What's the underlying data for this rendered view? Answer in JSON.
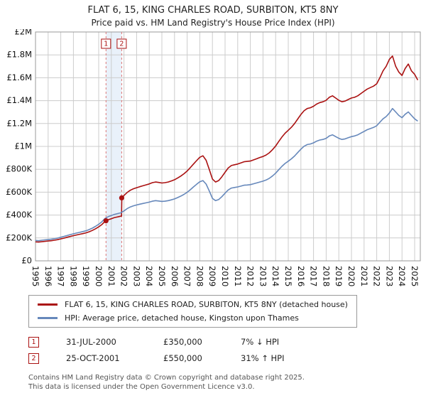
{
  "header": {
    "title": "FLAT 6, 15, KING CHARLES ROAD, SURBITON, KT5 8NY",
    "subtitle": "Price paid vs. HM Land Registry's House Price Index (HPI)"
  },
  "chart_data": {
    "type": "line",
    "xlim": [
      1995,
      2025.45
    ],
    "ylim": [
      0,
      2000000
    ],
    "grid": true,
    "legend_position": "bottom",
    "xticks": [
      1995,
      1996,
      1997,
      1998,
      1999,
      2000,
      2001,
      2002,
      2003,
      2004,
      2005,
      2006,
      2007,
      2008,
      2009,
      2010,
      2011,
      2012,
      2013,
      2014,
      2015,
      2016,
      2017,
      2018,
      2019,
      2020,
      2021,
      2022,
      2023,
      2024,
      2025
    ],
    "yticks": [
      {
        "value": 0,
        "label": "£0"
      },
      {
        "value": 200000,
        "label": "£200K"
      },
      {
        "value": 400000,
        "label": "£400K"
      },
      {
        "value": 600000,
        "label": "£600K"
      },
      {
        "value": 800000,
        "label": "£800K"
      },
      {
        "value": 1000000,
        "label": "£1M"
      },
      {
        "value": 1200000,
        "label": "£1.2M"
      },
      {
        "value": 1400000,
        "label": "£1.4M"
      },
      {
        "value": 1600000,
        "label": "£1.6M"
      },
      {
        "value": 1800000,
        "label": "£1.8M"
      },
      {
        "value": 2000000,
        "label": "£2M"
      }
    ],
    "highlight_band": {
      "x1": 2000.58,
      "x2": 2001.82,
      "color": "#cfdff5",
      "opacity": 0.45
    },
    "marker_line_color": "#dd7777",
    "markers": [
      {
        "label": "1",
        "x": 2000.58,
        "y": 350000
      },
      {
        "label": "2",
        "x": 2001.82,
        "y": 550000
      }
    ],
    "series": [
      {
        "name": "FLAT 6, 15, KING CHARLES ROAD, SURBITON, KT5 8NY (detached house)",
        "color": "#aa1111",
        "x": [
          1995,
          1995.25,
          1995.5,
          1995.75,
          1996,
          1996.25,
          1996.5,
          1996.75,
          1997,
          1997.25,
          1997.5,
          1997.75,
          1998,
          1998.25,
          1998.5,
          1998.75,
          1999,
          1999.25,
          1999.5,
          1999.75,
          2000,
          2000.25,
          2000.5,
          2000.58,
          2000.75,
          2001,
          2001.25,
          2001.5,
          2001.75,
          2001.81,
          2001.83,
          2002,
          2002.25,
          2002.5,
          2002.75,
          2003,
          2003.25,
          2003.5,
          2003.75,
          2004,
          2004.25,
          2004.5,
          2004.75,
          2005,
          2005.25,
          2005.5,
          2005.75,
          2006,
          2006.25,
          2006.5,
          2006.75,
          2007,
          2007.25,
          2007.5,
          2007.75,
          2008,
          2008.25,
          2008.5,
          2008.75,
          2009,
          2009.25,
          2009.5,
          2009.75,
          2010,
          2010.25,
          2010.5,
          2010.75,
          2011,
          2011.25,
          2011.5,
          2011.75,
          2012,
          2012.25,
          2012.5,
          2012.75,
          2013,
          2013.25,
          2013.5,
          2013.75,
          2014,
          2014.25,
          2014.5,
          2014.75,
          2015,
          2015.25,
          2015.5,
          2015.75,
          2016,
          2016.25,
          2016.5,
          2016.75,
          2017,
          2017.25,
          2017.5,
          2017.75,
          2018,
          2018.25,
          2018.5,
          2018.75,
          2019,
          2019.25,
          2019.5,
          2019.75,
          2020,
          2020.25,
          2020.5,
          2020.75,
          2021,
          2021.25,
          2021.5,
          2021.75,
          2022,
          2022.25,
          2022.5,
          2022.75,
          2023,
          2023.25,
          2023.5,
          2023.75,
          2024,
          2024.25,
          2024.5,
          2024.75,
          2025,
          2025.25
        ],
        "y": [
          166000,
          164000,
          167000,
          170000,
          173000,
          176000,
          180000,
          185000,
          192000,
          198000,
          206000,
          213000,
          220000,
          226000,
          232000,
          238000,
          245000,
          254000,
          266000,
          280000,
          297000,
          317000,
          345000,
          350000,
          359000,
          368000,
          378000,
          384000,
          390000,
          392000,
          550000,
          571000,
          597000,
          617000,
          630000,
          639000,
          648000,
          656000,
          664000,
          672000,
          683000,
          689000,
          685000,
          680000,
          683000,
          689000,
          698000,
          709000,
          724000,
          741000,
          761000,
          785000,
          814000,
          846000,
          876000,
          905000,
          918000,
          879000,
          800000,
          715000,
          689000,
          702000,
          735000,
          774000,
          811000,
          833000,
          840000,
          846000,
          856000,
          866000,
          869000,
          872000,
          882000,
          892000,
          903000,
          912000,
          925000,
          944000,
          971000,
          1003000,
          1043000,
          1082000,
          1115000,
          1141000,
          1167000,
          1200000,
          1239000,
          1279000,
          1311000,
          1331000,
          1338000,
          1351000,
          1370000,
          1383000,
          1390000,
          1403000,
          1429000,
          1442000,
          1423000,
          1403000,
          1390000,
          1396000,
          1410000,
          1423000,
          1429000,
          1442000,
          1462000,
          1482000,
          1501000,
          1514000,
          1527000,
          1547000,
          1600000,
          1660000,
          1700000,
          1760000,
          1790000,
          1700000,
          1650000,
          1620000,
          1680000,
          1720000,
          1660000,
          1630000,
          1580000
        ]
      },
      {
        "name": "HPI: Average price, detached house, Kingston upon Thames",
        "color": "#6688bb",
        "x": [
          1995,
          1995.25,
          1995.5,
          1995.75,
          1996,
          1996.25,
          1996.5,
          1996.75,
          1997,
          1997.25,
          1997.5,
          1997.75,
          1998,
          1998.25,
          1998.5,
          1998.75,
          1999,
          1999.25,
          1999.5,
          1999.75,
          2000,
          2000.25,
          2000.5,
          2000.75,
          2001,
          2001.25,
          2001.5,
          2001.75,
          2002,
          2002.25,
          2002.5,
          2002.75,
          2003,
          2003.25,
          2003.5,
          2003.75,
          2004,
          2004.25,
          2004.5,
          2004.75,
          2005,
          2005.25,
          2005.5,
          2005.75,
          2006,
          2006.25,
          2006.5,
          2006.75,
          2007,
          2007.25,
          2007.5,
          2007.75,
          2008,
          2008.25,
          2008.5,
          2008.75,
          2009,
          2009.25,
          2009.5,
          2009.75,
          2010,
          2010.25,
          2010.5,
          2010.75,
          2011,
          2011.25,
          2011.5,
          2011.75,
          2012,
          2012.25,
          2012.5,
          2012.75,
          2013,
          2013.25,
          2013.5,
          2013.75,
          2014,
          2014.25,
          2014.5,
          2014.75,
          2015,
          2015.25,
          2015.5,
          2015.75,
          2016,
          2016.25,
          2016.5,
          2016.75,
          2017,
          2017.25,
          2017.5,
          2017.75,
          2018,
          2018.25,
          2018.5,
          2018.75,
          2019,
          2019.25,
          2019.5,
          2019.75,
          2020,
          2020.25,
          2020.5,
          2020.75,
          2021,
          2021.25,
          2021.5,
          2021.75,
          2022,
          2022.25,
          2022.5,
          2022.75,
          2023,
          2023.25,
          2023.5,
          2023.75,
          2024,
          2024.25,
          2024.5,
          2024.75,
          2025,
          2025.25
        ],
        "y": [
          178000,
          176000,
          180000,
          183000,
          186000,
          189000,
          193000,
          199000,
          206000,
          213000,
          221000,
          229000,
          236000,
          243000,
          249000,
          256000,
          263000,
          273000,
          286000,
          301000,
          319000,
          341000,
          371000,
          386000,
          396000,
          406000,
          413000,
          419000,
          436000,
          456000,
          471000,
          481000,
          488000,
          495000,
          501000,
          507000,
          513000,
          521000,
          526000,
          523000,
          519000,
          521000,
          526000,
          533000,
          541000,
          553000,
          566000,
          581000,
          599000,
          621000,
          646000,
          669000,
          691000,
          701000,
          671000,
          611000,
          546000,
          526000,
          536000,
          561000,
          591000,
          619000,
          636000,
          641000,
          646000,
          653000,
          661000,
          663000,
          666000,
          673000,
          681000,
          689000,
          696000,
          706000,
          721000,
          741000,
          766000,
          796000,
          826000,
          851000,
          871000,
          891000,
          916000,
          946000,
          976000,
          1001000,
          1016000,
          1021000,
          1031000,
          1046000,
          1056000,
          1061000,
          1071000,
          1091000,
          1101000,
          1086000,
          1071000,
          1061000,
          1066000,
          1076000,
          1086000,
          1091000,
          1101000,
          1116000,
          1131000,
          1146000,
          1156000,
          1166000,
          1181000,
          1211000,
          1241000,
          1261000,
          1291000,
          1331000,
          1301000,
          1271000,
          1251000,
          1281000,
          1301000,
          1271000,
          1241000,
          1221000
        ]
      }
    ]
  },
  "transactions": [
    {
      "num": "1",
      "date": "31-JUL-2000",
      "price": "£350,000",
      "hpi_delta": "7% ↓ HPI"
    },
    {
      "num": "2",
      "date": "25-OCT-2001",
      "price": "£550,000",
      "hpi_delta": "31% ↑ HPI"
    }
  ],
  "footer": {
    "line1": "Contains HM Land Registry data © Crown copyright and database right 2025.",
    "line2": "This data is licensed under the Open Government Licence v3.0."
  }
}
